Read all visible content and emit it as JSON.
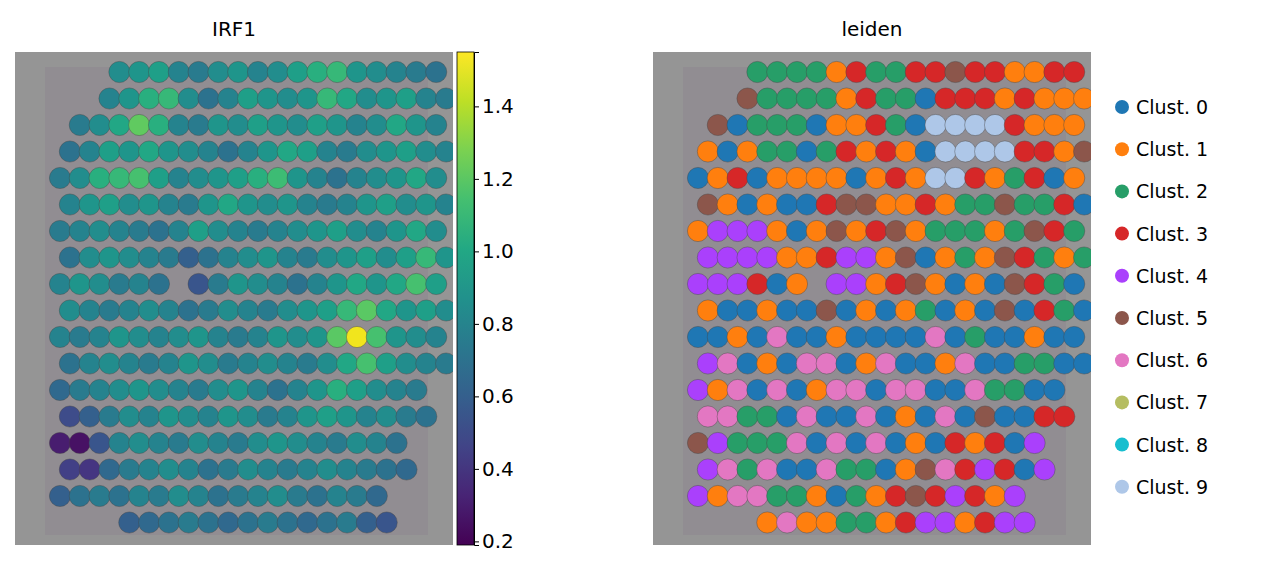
{
  "chart_data": [
    {
      "type": "heatmap",
      "title": "IRF1",
      "tick_labels": false,
      "colorbar": {
        "range": [
          0.19,
          1.55
        ],
        "ticks": [
          0.2,
          0.4,
          0.6,
          0.8,
          {
            "value": 1,
            "label": "1.0"
          },
          1.2,
          1.4
        ]
      },
      "cells": [
        [
          null,
          null,
          null,
          0.85,
          0.9,
          0.95,
          0.8,
          0.75,
          0.85,
          0.9,
          0.8,
          0.85,
          0.95,
          1.05,
          1.1,
          0.9,
          0.85,
          0.8,
          0.75,
          0.7
        ],
        [
          null,
          null,
          0.8,
          0.9,
          1.05,
          1.1,
          0.85,
          0.7,
          0.8,
          0.95,
          0.9,
          0.85,
          0.9,
          1.1,
          1.0,
          0.85,
          0.9,
          0.95,
          0.8,
          0.75
        ],
        [
          null,
          0.75,
          0.85,
          1.0,
          1.22,
          1.05,
          0.8,
          0.75,
          0.9,
          0.85,
          0.95,
          0.9,
          0.85,
          0.95,
          0.9,
          0.8,
          0.85,
          1.0,
          0.9,
          0.8
        ],
        [
          0.7,
          0.8,
          0.95,
          0.9,
          1.0,
          0.9,
          0.85,
          0.8,
          0.7,
          0.8,
          0.9,
          1.0,
          0.95,
          0.8,
          0.75,
          0.85,
          0.9,
          0.95,
          0.85,
          0.8
        ],
        [
          0.75,
          0.85,
          1.05,
          1.1,
          1.15,
          0.95,
          0.8,
          0.85,
          0.9,
          0.95,
          1.05,
          1.12,
          0.9,
          0.8,
          0.7,
          0.8,
          0.85,
          0.9,
          1.0,
          0.85
        ],
        [
          0.8,
          0.9,
          0.95,
          0.85,
          0.9,
          0.8,
          0.75,
          0.9,
          1.0,
          0.9,
          0.85,
          0.9,
          0.8,
          0.75,
          0.8,
          0.9,
          0.95,
          0.85,
          0.9,
          0.8
        ],
        [
          0.75,
          0.8,
          0.85,
          0.8,
          0.75,
          0.7,
          0.8,
          0.95,
          0.85,
          0.8,
          0.75,
          0.8,
          0.85,
          0.9,
          0.95,
          0.85,
          0.8,
          0.9,
          1.0,
          0.85
        ],
        [
          0.7,
          0.85,
          0.9,
          0.85,
          0.8,
          0.75,
          0.6,
          0.7,
          0.8,
          0.85,
          0.9,
          0.8,
          0.75,
          0.85,
          0.9,
          0.95,
          0.85,
          0.95,
          1.1,
          0.9
        ],
        [
          0.8,
          0.9,
          0.85,
          0.75,
          0.8,
          0.7,
          null,
          0.55,
          0.75,
          0.9,
          0.85,
          0.8,
          0.7,
          0.8,
          0.9,
          1.0,
          0.9,
          1.0,
          1.15,
          0.95
        ],
        [
          0.85,
          0.8,
          0.75,
          0.8,
          0.85,
          0.8,
          0.7,
          0.75,
          0.85,
          0.8,
          0.75,
          0.85,
          0.9,
          0.95,
          1.1,
          1.2,
          1.0,
          0.9,
          0.95,
          0.85
        ],
        [
          0.8,
          0.75,
          0.8,
          0.9,
          0.85,
          0.8,
          0.85,
          0.9,
          0.8,
          0.75,
          0.8,
          0.9,
          0.85,
          0.9,
          1.2,
          1.52,
          1.15,
          0.9,
          0.85,
          0.8
        ],
        [
          0.7,
          0.8,
          0.85,
          0.8,
          0.75,
          0.8,
          0.9,
          0.85,
          0.75,
          0.8,
          0.85,
          0.8,
          0.75,
          0.85,
          1.0,
          1.15,
          0.95,
          0.85,
          0.8,
          0.75
        ],
        [
          0.65,
          0.75,
          0.8,
          0.85,
          0.9,
          0.85,
          0.8,
          0.75,
          0.85,
          0.9,
          0.8,
          0.7,
          0.8,
          0.9,
          1.05,
          0.95,
          0.85,
          0.8,
          0.75,
          null
        ],
        [
          0.5,
          0.6,
          0.75,
          0.85,
          0.8,
          0.9,
          0.85,
          0.8,
          0.9,
          0.85,
          0.75,
          0.8,
          0.9,
          0.95,
          0.9,
          0.8,
          0.85,
          0.75,
          0.7,
          null
        ],
        [
          0.3,
          0.25,
          0.55,
          0.8,
          0.85,
          0.8,
          0.75,
          0.85,
          0.8,
          0.75,
          0.85,
          0.9,
          0.85,
          0.8,
          0.75,
          0.85,
          0.8,
          0.7,
          null,
          null
        ],
        [
          0.45,
          0.4,
          0.65,
          0.75,
          0.8,
          0.85,
          0.8,
          0.7,
          0.75,
          0.85,
          0.8,
          0.75,
          0.8,
          0.85,
          0.8,
          0.75,
          0.7,
          0.65,
          null,
          null
        ],
        [
          0.6,
          0.7,
          0.75,
          0.7,
          0.8,
          0.75,
          0.85,
          0.8,
          0.7,
          0.75,
          0.8,
          0.85,
          0.75,
          0.7,
          0.8,
          0.75,
          0.65,
          null,
          null,
          null
        ],
        [
          null,
          null,
          null,
          0.6,
          0.65,
          0.7,
          0.75,
          0.7,
          0.65,
          0.7,
          0.75,
          0.7,
          0.65,
          0.7,
          0.75,
          0.6,
          0.55,
          null,
          null,
          null
        ]
      ]
    },
    {
      "type": "scatter",
      "title": "leiden",
      "tick_labels": false,
      "legend": "right",
      "categories": [
        "Clust. 0",
        "Clust. 1",
        "Clust. 2",
        "Clust. 3",
        "Clust. 4",
        "Clust. 5",
        "Clust. 6",
        "Clust. 7",
        "Clust. 8",
        "Clust. 9"
      ],
      "colors": [
        "#1f77b4",
        "#ff7f0e",
        "#279e68",
        "#d62728",
        "#aa40fc",
        "#8c564b",
        "#e377c2",
        "#b5bd61",
        "#17becf",
        "#aec7e8"
      ],
      "cells": [
        [
          null,
          null,
          null,
          2,
          2,
          2,
          2,
          1,
          3,
          2,
          2,
          3,
          3,
          5,
          3,
          3,
          1,
          1,
          3,
          3
        ],
        [
          null,
          null,
          5,
          2,
          2,
          2,
          2,
          1,
          3,
          2,
          2,
          0,
          3,
          3,
          3,
          1,
          3,
          1,
          1,
          1
        ],
        [
          null,
          5,
          0,
          2,
          2,
          2,
          0,
          1,
          1,
          3,
          2,
          0,
          9,
          9,
          9,
          9,
          3,
          1,
          1,
          1
        ],
        [
          1,
          0,
          1,
          2,
          2,
          0,
          2,
          3,
          1,
          3,
          1,
          0,
          9,
          9,
          9,
          9,
          3,
          3,
          1,
          5
        ],
        [
          0,
          1,
          3,
          0,
          1,
          1,
          1,
          1,
          0,
          1,
          3,
          1,
          9,
          9,
          3,
          1,
          2,
          3,
          0,
          1
        ],
        [
          5,
          1,
          0,
          1,
          0,
          0,
          3,
          5,
          5,
          1,
          1,
          3,
          1,
          2,
          2,
          5,
          2,
          2,
          3,
          0
        ],
        [
          1,
          4,
          4,
          4,
          1,
          0,
          1,
          5,
          1,
          3,
          5,
          1,
          2,
          2,
          2,
          1,
          2,
          5,
          3,
          2
        ],
        [
          4,
          4,
          4,
          4,
          1,
          1,
          3,
          4,
          4,
          1,
          5,
          0,
          1,
          2,
          1,
          5,
          3,
          2,
          1,
          2
        ],
        [
          4,
          4,
          4,
          3,
          0,
          1,
          null,
          4,
          4,
          1,
          3,
          5,
          1,
          0,
          1,
          0,
          5,
          3,
          2,
          0
        ],
        [
          1,
          0,
          0,
          1,
          0,
          0,
          5,
          0,
          1,
          0,
          1,
          2,
          0,
          1,
          0,
          5,
          0,
          3,
          2,
          0
        ],
        [
          0,
          0,
          1,
          0,
          6,
          0,
          0,
          1,
          0,
          0,
          0,
          0,
          6,
          0,
          2,
          0,
          0,
          1,
          0,
          0
        ],
        [
          4,
          6,
          0,
          1,
          0,
          6,
          6,
          0,
          1,
          6,
          0,
          0,
          1,
          6,
          0,
          0,
          2,
          2,
          0,
          0
        ],
        [
          4,
          1,
          6,
          0,
          6,
          0,
          1,
          6,
          6,
          0,
          6,
          6,
          0,
          0,
          6,
          2,
          2,
          0,
          0,
          null
        ],
        [
          6,
          6,
          2,
          2,
          0,
          6,
          0,
          0,
          6,
          0,
          1,
          0,
          6,
          0,
          5,
          0,
          0,
          3,
          3,
          null
        ],
        [
          5,
          4,
          2,
          2,
          2,
          6,
          0,
          6,
          0,
          6,
          0,
          1,
          0,
          3,
          1,
          3,
          0,
          4,
          null,
          null
        ],
        [
          4,
          6,
          2,
          6,
          0,
          0,
          6,
          2,
          2,
          0,
          1,
          5,
          6,
          3,
          4,
          3,
          0,
          4,
          null,
          null
        ],
        [
          4,
          1,
          6,
          6,
          2,
          2,
          1,
          0,
          2,
          1,
          3,
          5,
          3,
          4,
          3,
          1,
          4,
          null,
          null,
          null
        ],
        [
          null,
          null,
          null,
          1,
          6,
          1,
          1,
          2,
          2,
          1,
          3,
          4,
          4,
          1,
          3,
          4,
          4,
          null,
          null,
          null
        ]
      ]
    }
  ]
}
